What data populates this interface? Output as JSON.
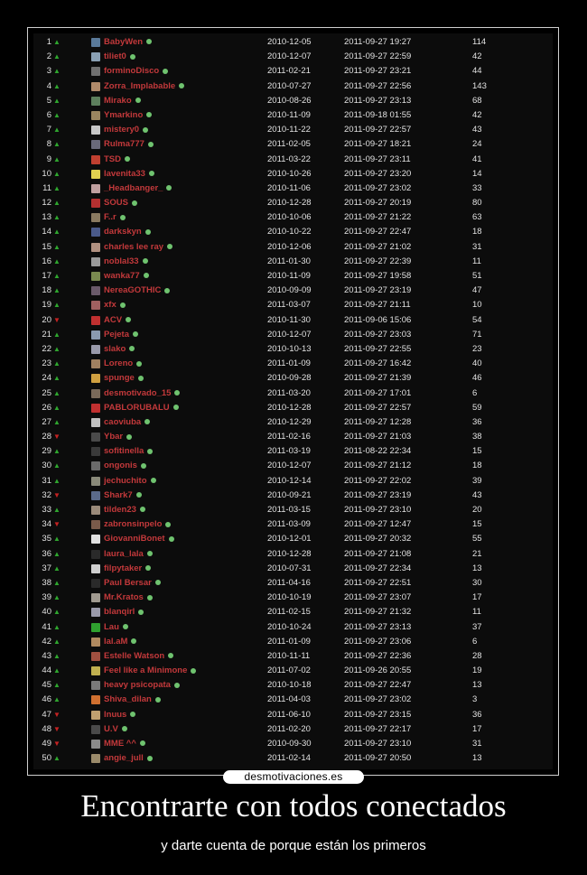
{
  "poster": {
    "logo": "desmotivaciones.es",
    "title": "Encontrarte con todos conectados",
    "subtitle": "y darte cuenta de porque están los primeros"
  },
  "ranking": {
    "rows": [
      {
        "rank": "1",
        "trend": "up",
        "user": "BabyWen",
        "registered": "2010-12-05",
        "last_seen": "2011-09-27 19:27",
        "count": "114",
        "avatar_color": "#5a7a9a"
      },
      {
        "rank": "2",
        "trend": "up",
        "user": "tiliet0",
        "registered": "2010-12-07",
        "last_seen": "2011-09-27 22:59",
        "count": "42",
        "avatar_color": "#8aa0b4"
      },
      {
        "rank": "3",
        "trend": "up",
        "user": "forminoDisco",
        "registered": "2011-02-21",
        "last_seen": "2011-09-27 23:21",
        "count": "44",
        "avatar_color": "#707070"
      },
      {
        "rank": "4",
        "trend": "up",
        "user": "Zorra_Implabable",
        "registered": "2010-07-27",
        "last_seen": "2011-09-27 22:56",
        "count": "143",
        "avatar_color": "#b08a6a"
      },
      {
        "rank": "5",
        "trend": "up",
        "user": "Mirako",
        "registered": "2010-08-26",
        "last_seen": "2011-09-27 23:13",
        "count": "68",
        "avatar_color": "#5d7f5d"
      },
      {
        "rank": "6",
        "trend": "up",
        "user": "Ymarkino",
        "registered": "2010-11-09",
        "last_seen": "2011-09-18 01:55",
        "count": "42",
        "avatar_color": "#9a8560"
      },
      {
        "rank": "7",
        "trend": "up",
        "user": "mistery0",
        "registered": "2010-11-22",
        "last_seen": "2011-09-27 22:57",
        "count": "43",
        "avatar_color": "#c7c7c7"
      },
      {
        "rank": "8",
        "trend": "up",
        "user": "Rulma777",
        "registered": "2011-02-05",
        "last_seen": "2011-09-27 18:21",
        "count": "24",
        "avatar_color": "#6a6a7a"
      },
      {
        "rank": "9",
        "trend": "up",
        "user": "TSD",
        "registered": "2011-03-22",
        "last_seen": "2011-09-27 23:11",
        "count": "41",
        "avatar_color": "#c04030"
      },
      {
        "rank": "10",
        "trend": "up",
        "user": "lavenita33",
        "registered": "2010-10-26",
        "last_seen": "2011-09-27 23:20",
        "count": "14",
        "avatar_color": "#e0d050"
      },
      {
        "rank": "11",
        "trend": "up",
        "user": "_Headbanger_",
        "registered": "2010-11-06",
        "last_seen": "2011-09-27 23:02",
        "count": "33",
        "avatar_color": "#c0a0a0"
      },
      {
        "rank": "12",
        "trend": "up",
        "user": "SOUS",
        "registered": "2010-12-28",
        "last_seen": "2011-09-27 20:19",
        "count": "80",
        "avatar_color": "#b43030"
      },
      {
        "rank": "13",
        "trend": "up",
        "user": "F..r",
        "registered": "2010-10-06",
        "last_seen": "2011-09-27 21:22",
        "count": "63",
        "avatar_color": "#8a7a60"
      },
      {
        "rank": "14",
        "trend": "up",
        "user": "darkskyn",
        "registered": "2010-10-22",
        "last_seen": "2011-09-27 22:47",
        "count": "18",
        "avatar_color": "#4a5a8a"
      },
      {
        "rank": "15",
        "trend": "up",
        "user": "charles lee ray",
        "registered": "2010-12-06",
        "last_seen": "2011-09-27 21:02",
        "count": "31",
        "avatar_color": "#b09080"
      },
      {
        "rank": "16",
        "trend": "up",
        "user": "noblal33",
        "registered": "2011-01-30",
        "last_seen": "2011-09-27 22:39",
        "count": "11",
        "avatar_color": "#9a9a9a"
      },
      {
        "rank": "17",
        "trend": "up",
        "user": "wanka77",
        "registered": "2010-11-09",
        "last_seen": "2011-09-27 19:58",
        "count": "51",
        "avatar_color": "#7a8a50"
      },
      {
        "rank": "18",
        "trend": "up",
        "user": "NereaGOTHIC",
        "registered": "2010-09-09",
        "last_seen": "2011-09-27 23:19",
        "count": "47",
        "avatar_color": "#6a5a6a"
      },
      {
        "rank": "19",
        "trend": "up",
        "user": "xfx",
        "registered": "2011-03-07",
        "last_seen": "2011-09-27 21:11",
        "count": "10",
        "avatar_color": "#a06060"
      },
      {
        "rank": "20",
        "trend": "down",
        "user": "ACV",
        "registered": "2010-11-30",
        "last_seen": "2011-09-06 15:06",
        "count": "54",
        "avatar_color": "#c03030"
      },
      {
        "rank": "21",
        "trend": "up",
        "user": "Pejeta",
        "registered": "2010-12-07",
        "last_seen": "2011-09-27 23:03",
        "count": "71",
        "avatar_color": "#8a9ab0"
      },
      {
        "rank": "22",
        "trend": "up",
        "user": "slako",
        "registered": "2010-10-13",
        "last_seen": "2011-09-27 22:55",
        "count": "23",
        "avatar_color": "#9a9aaa"
      },
      {
        "rank": "23",
        "trend": "up",
        "user": "Loreno",
        "registered": "2011-01-09",
        "last_seen": "2011-09-27 16:42",
        "count": "40",
        "avatar_color": "#a08060"
      },
      {
        "rank": "24",
        "trend": "up",
        "user": "spunge",
        "registered": "2010-09-28",
        "last_seen": "2011-09-27 21:39",
        "count": "46",
        "avatar_color": "#d0a040"
      },
      {
        "rank": "25",
        "trend": "up",
        "user": "desmotivado_15",
        "registered": "2011-03-20",
        "last_seen": "2011-09-27 17:01",
        "count": "6",
        "avatar_color": "#7a6a5a"
      },
      {
        "rank": "26",
        "trend": "up",
        "user": "PABLORUBALU",
        "registered": "2010-12-28",
        "last_seen": "2011-09-27 22:57",
        "count": "59",
        "avatar_color": "#c03030"
      },
      {
        "rank": "27",
        "trend": "up",
        "user": "caoviuba",
        "registered": "2010-12-29",
        "last_seen": "2011-09-27 12:28",
        "count": "36",
        "avatar_color": "#c0c0c0"
      },
      {
        "rank": "28",
        "trend": "down",
        "user": "Ybar",
        "registered": "2011-02-16",
        "last_seen": "2011-09-27 21:03",
        "count": "38",
        "avatar_color": "#4a4a4a"
      },
      {
        "rank": "29",
        "trend": "up",
        "user": "sofitinella",
        "registered": "2011-03-19",
        "last_seen": "2011-08-22 22:34",
        "count": "15",
        "avatar_color": "#3a3a3a"
      },
      {
        "rank": "30",
        "trend": "up",
        "user": "ongonis",
        "registered": "2010-12-07",
        "last_seen": "2011-09-27 21:12",
        "count": "18",
        "avatar_color": "#6a6a6a"
      },
      {
        "rank": "31",
        "trend": "up",
        "user": "jechuchito",
        "registered": "2010-12-14",
        "last_seen": "2011-09-27 22:02",
        "count": "39",
        "avatar_color": "#8a8a7a"
      },
      {
        "rank": "32",
        "trend": "down",
        "user": "Shark7",
        "registered": "2010-09-21",
        "last_seen": "2011-09-27 23:19",
        "count": "43",
        "avatar_color": "#5a6a8a"
      },
      {
        "rank": "33",
        "trend": "up",
        "user": "tilden23",
        "registered": "2011-03-15",
        "last_seen": "2011-09-27 23:10",
        "count": "20",
        "avatar_color": "#9a8a7a"
      },
      {
        "rank": "34",
        "trend": "down",
        "user": "zabronsinpelo",
        "registered": "2011-03-09",
        "last_seen": "2011-09-27 12:47",
        "count": "15",
        "avatar_color": "#7a5a4a"
      },
      {
        "rank": "35",
        "trend": "up",
        "user": "GiovanniBonet",
        "registered": "2010-12-01",
        "last_seen": "2011-09-27 20:32",
        "count": "55",
        "avatar_color": "#e0e0e0"
      },
      {
        "rank": "36",
        "trend": "up",
        "user": "laura_lala",
        "registered": "2010-12-28",
        "last_seen": "2011-09-27 21:08",
        "count": "21",
        "avatar_color": "#2a2a2a"
      },
      {
        "rank": "37",
        "trend": "up",
        "user": "filpytaker",
        "registered": "2010-07-31",
        "last_seen": "2011-09-27 22:34",
        "count": "13",
        "avatar_color": "#d0d0d0"
      },
      {
        "rank": "38",
        "trend": "up",
        "user": "Paul Bersar",
        "registered": "2011-04-16",
        "last_seen": "2011-09-27 22:51",
        "count": "30",
        "avatar_color": "#2a2a2a"
      },
      {
        "rank": "39",
        "trend": "up",
        "user": "Mr.Kratos",
        "registered": "2010-10-19",
        "last_seen": "2011-09-27 23:07",
        "count": "17",
        "avatar_color": "#a09a90"
      },
      {
        "rank": "40",
        "trend": "up",
        "user": "blanqirl",
        "registered": "2011-02-15",
        "last_seen": "2011-09-27 21:32",
        "count": "11",
        "avatar_color": "#9a9aaa"
      },
      {
        "rank": "41",
        "trend": "up",
        "user": "Lau",
        "registered": "2010-10-24",
        "last_seen": "2011-09-27 23:13",
        "count": "37",
        "avatar_color": "#2fa02f"
      },
      {
        "rank": "42",
        "trend": "up",
        "user": "lal.aM",
        "registered": "2011-01-09",
        "last_seen": "2011-09-27 23:06",
        "count": "6",
        "avatar_color": "#b08a60"
      },
      {
        "rank": "43",
        "trend": "up",
        "user": "Estelle Watson",
        "registered": "2010-11-11",
        "last_seen": "2011-09-27 22:36",
        "count": "28",
        "avatar_color": "#a05040"
      },
      {
        "rank": "44",
        "trend": "up",
        "user": "Feel like a Minimone",
        "registered": "2011-07-02",
        "last_seen": "2011-09-26 20:55",
        "count": "19",
        "avatar_color": "#c0b050"
      },
      {
        "rank": "45",
        "trend": "up",
        "user": "heavy psicopata",
        "registered": "2010-10-18",
        "last_seen": "2011-09-27 22:47",
        "count": "13",
        "avatar_color": "#7a7a7a"
      },
      {
        "rank": "46",
        "trend": "up",
        "user": "Shiva_dilan",
        "registered": "2011-04-03",
        "last_seen": "2011-09-27 23:02",
        "count": "3",
        "avatar_color": "#d07030"
      },
      {
        "rank": "47",
        "trend": "down",
        "user": "lnuus",
        "registered": "2011-06-10",
        "last_seen": "2011-09-27 23:15",
        "count": "36",
        "avatar_color": "#c0a070"
      },
      {
        "rank": "48",
        "trend": "down",
        "user": "U.V",
        "registered": "2011-02-20",
        "last_seen": "2011-09-27 22:17",
        "count": "17",
        "avatar_color": "#4a4a4a"
      },
      {
        "rank": "49",
        "trend": "down",
        "user": "MME ^^",
        "registered": "2010-09-30",
        "last_seen": "2011-09-27 23:10",
        "count": "31",
        "avatar_color": "#8a8a8a"
      },
      {
        "rank": "50",
        "trend": "up",
        "user": "angie_jull",
        "registered": "2011-02-14",
        "last_seen": "2011-09-27 20:50",
        "count": "13",
        "avatar_color": "#9a8a6a"
      }
    ]
  }
}
